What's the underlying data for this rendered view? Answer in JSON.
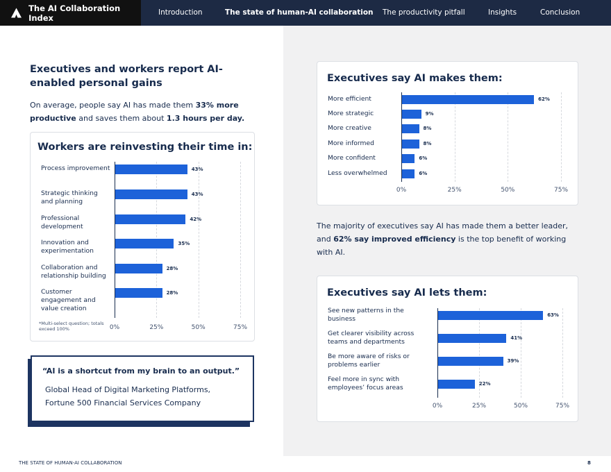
{
  "nav": {
    "brand": "The AI Collaboration Index",
    "items": [
      "Introduction",
      "The state of human-AI collaboration",
      "The productivity pitfall",
      "Insights",
      "Conclusion"
    ],
    "active": 1
  },
  "left": {
    "heading": "Executives and workers report AI-enabled personal gains",
    "intro": {
      "p1": "On average, people say AI has made them ",
      "b1": "33% more productive",
      "p2": " and saves them about ",
      "b2": "1.3 hours per day."
    },
    "footnote": "*Multi-select question; totals exceed 100%"
  },
  "quote": {
    "text": "“AI is a shortcut from my brain to an output.”",
    "attribution_line1": "Global Head of Digital Marketing Platforms,",
    "attribution_line2": "Fortune 500 Financial Services Company"
  },
  "right": {
    "paragraph": {
      "p1": "The majority of executives say AI has made them a better leader, and ",
      "b1": "62% say improved efficiency",
      "p2": " is the top benefit of working with AI."
    }
  },
  "footer": {
    "title": "THE STATE OF HUMAN-AI COLLABORATION",
    "page": "8"
  },
  "colors": {
    "bar": "#1d62d9",
    "nav": "#1d2a44",
    "brand_bg": "#111111",
    "panel": "#f1f1f2"
  },
  "chart_data": [
    {
      "type": "bar",
      "orientation": "horizontal",
      "title": "Workers are reinvesting their time in:",
      "categories": [
        "Process improvement",
        "Strategic thinking and planning",
        "Professional development",
        "Innovation and experimentation",
        "Collaboration and relationship building",
        "Customer engagement and value creation"
      ],
      "values": [
        43,
        43,
        42,
        35,
        28,
        28
      ],
      "value_labels": [
        "43%",
        "43%",
        "42%",
        "35%",
        "28%",
        "28%"
      ],
      "xlim": [
        0,
        75
      ],
      "ticks": [
        "0%",
        "25%",
        "50%",
        "75%"
      ],
      "grid": true
    },
    {
      "type": "bar",
      "orientation": "horizontal",
      "title": "Executives say AI makes them:",
      "categories": [
        "More efficient",
        "More strategic",
        "More creative",
        "More informed",
        "More confident",
        "Less overwhelmed"
      ],
      "values": [
        62,
        9,
        8,
        8,
        6,
        6
      ],
      "value_labels": [
        "62%",
        "9%",
        "8%",
        "8%",
        "6%",
        "6%"
      ],
      "xlim": [
        0,
        75
      ],
      "ticks": [
        "0%",
        "25%",
        "50%",
        "75%"
      ],
      "grid": true
    },
    {
      "type": "bar",
      "orientation": "horizontal",
      "title": "Executives say AI lets them:",
      "categories": [
        "See new patterns in the business",
        "Get clearer visibility across teams and departments",
        "Be more aware of risks or problems earlier",
        "Feel more in sync with employees’ focus areas"
      ],
      "values": [
        63,
        41,
        39,
        22
      ],
      "value_labels": [
        "63%",
        "41%",
        "39%",
        "22%"
      ],
      "xlim": [
        0,
        75
      ],
      "ticks": [
        "0%",
        "25%",
        "50%",
        "75%"
      ],
      "grid": true
    }
  ]
}
